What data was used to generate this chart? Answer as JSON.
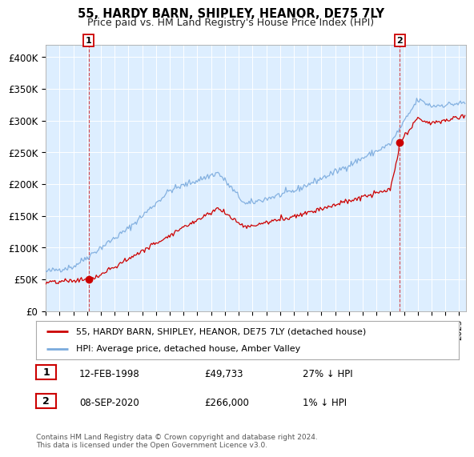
{
  "title": "55, HARDY BARN, SHIPLEY, HEANOR, DE75 7LY",
  "subtitle": "Price paid vs. HM Land Registry's House Price Index (HPI)",
  "legend_entry1": "55, HARDY BARN, SHIPLEY, HEANOR, DE75 7LY (detached house)",
  "legend_entry2": "HPI: Average price, detached house, Amber Valley",
  "annotation1_date": "12-FEB-1998",
  "annotation1_price": "£49,733",
  "annotation1_hpi": "27% ↓ HPI",
  "annotation2_date": "08-SEP-2020",
  "annotation2_price": "£266,000",
  "annotation2_hpi": "1% ↓ HPI",
  "footer": "Contains HM Land Registry data © Crown copyright and database right 2024.\nThis data is licensed under the Open Government Licence v3.0.",
  "red_color": "#cc0000",
  "blue_color": "#7aaadd",
  "blue_fill_color": "#ddeeff",
  "annotation_box_color": "#cc0000",
  "background_color": "#ffffff",
  "grid_color": "#cccccc",
  "ylim": [
    0,
    420000
  ],
  "yticks": [
    0,
    50000,
    100000,
    150000,
    200000,
    250000,
    300000,
    350000,
    400000
  ],
  "ytick_labels": [
    "£0",
    "£50K",
    "£100K",
    "£150K",
    "£200K",
    "£250K",
    "£300K",
    "£350K",
    "£400K"
  ],
  "sale1_x": 1998.12,
  "sale1_y": 49733,
  "sale2_x": 2020.7,
  "sale2_y": 266000,
  "xlim_start": 1995.0,
  "xlim_end": 2025.5
}
